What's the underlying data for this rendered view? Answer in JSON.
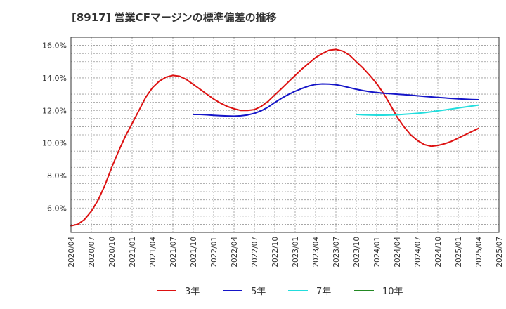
{
  "chart_data": {
    "type": "line",
    "title": "[8917]  営業CFマージンの標準偏差の推移",
    "xlabel": "",
    "ylabel": "",
    "ylim": [
      4.5,
      16.5
    ],
    "yticks": [
      6.0,
      8.0,
      10.0,
      12.0,
      14.0,
      16.0
    ],
    "ytick_labels": [
      "6.0%",
      "8.0%",
      "10.0%",
      "12.0%",
      "14.0%",
      "16.0%"
    ],
    "xtick_labels": [
      "2020/04",
      "2020/07",
      "2020/10",
      "2021/01",
      "2021/04",
      "2021/07",
      "2021/10",
      "2022/01",
      "2022/04",
      "2022/07",
      "2022/10",
      "2023/01",
      "2023/04",
      "2023/07",
      "2023/10",
      "2024/01",
      "2024/04",
      "2024/07",
      "2024/10",
      "2025/01",
      "2025/04",
      "2025/07"
    ],
    "grid": true,
    "legend_position": "bottom",
    "series": [
      {
        "name": "3年",
        "color": "#dd1111",
        "x": [
          "2020/04",
          "2020/05",
          "2020/06",
          "2020/07",
          "2020/08",
          "2020/09",
          "2020/10",
          "2020/11",
          "2020/12",
          "2021/01",
          "2021/02",
          "2021/03",
          "2021/04",
          "2021/05",
          "2021/06",
          "2021/07",
          "2021/08",
          "2021/09",
          "2021/10",
          "2021/11",
          "2021/12",
          "2022/01",
          "2022/02",
          "2022/03",
          "2022/04",
          "2022/05",
          "2022/06",
          "2022/07",
          "2022/08",
          "2022/09",
          "2022/10",
          "2022/11",
          "2022/12",
          "2023/01",
          "2023/02",
          "2023/03",
          "2023/04",
          "2023/05",
          "2023/06",
          "2023/07",
          "2023/08",
          "2023/09",
          "2023/10",
          "2023/11",
          "2023/12",
          "2024/01",
          "2024/02",
          "2024/03",
          "2024/04",
          "2024/05",
          "2024/06",
          "2024/07",
          "2024/08",
          "2024/09",
          "2024/10",
          "2024/11",
          "2024/12",
          "2025/01",
          "2025/02",
          "2025/03",
          "2025/04"
        ],
        "values": [
          4.9,
          5.0,
          5.3,
          5.8,
          6.5,
          7.4,
          8.5,
          9.5,
          10.4,
          11.2,
          12.0,
          12.8,
          13.4,
          13.8,
          14.05,
          14.15,
          14.1,
          13.9,
          13.6,
          13.3,
          13.0,
          12.7,
          12.45,
          12.25,
          12.1,
          12.0,
          12.0,
          12.05,
          12.25,
          12.55,
          12.95,
          13.35,
          13.75,
          14.15,
          14.55,
          14.9,
          15.25,
          15.5,
          15.7,
          15.75,
          15.65,
          15.4,
          15.0,
          14.6,
          14.15,
          13.65,
          13.05,
          12.35,
          11.6,
          11.0,
          10.5,
          10.15,
          9.9,
          9.8,
          9.85,
          9.95,
          10.1,
          10.3,
          10.5,
          10.7,
          10.9
        ]
      },
      {
        "name": "5年",
        "color": "#1515c8",
        "x": [
          "2021/10",
          "2021/11",
          "2021/12",
          "2022/01",
          "2022/02",
          "2022/03",
          "2022/04",
          "2022/05",
          "2022/06",
          "2022/07",
          "2022/08",
          "2022/09",
          "2022/10",
          "2022/11",
          "2022/12",
          "2023/01",
          "2023/02",
          "2023/03",
          "2023/04",
          "2023/05",
          "2023/06",
          "2023/07",
          "2023/08",
          "2023/09",
          "2023/10",
          "2023/11",
          "2023/12",
          "2024/01",
          "2024/02",
          "2024/03",
          "2024/04",
          "2024/05",
          "2024/06",
          "2024/07",
          "2024/08",
          "2024/09",
          "2024/10",
          "2024/11",
          "2024/12",
          "2025/01",
          "2025/02",
          "2025/03",
          "2025/04"
        ],
        "values": [
          11.75,
          11.75,
          11.73,
          11.7,
          11.68,
          11.66,
          11.65,
          11.67,
          11.72,
          11.82,
          11.98,
          12.2,
          12.48,
          12.75,
          12.98,
          13.18,
          13.35,
          13.5,
          13.6,
          13.63,
          13.62,
          13.58,
          13.5,
          13.4,
          13.3,
          13.22,
          13.15,
          13.1,
          13.06,
          13.03,
          13.0,
          12.97,
          12.94,
          12.9,
          12.86,
          12.83,
          12.8,
          12.77,
          12.74,
          12.71,
          12.69,
          12.67,
          12.66
        ]
      },
      {
        "name": "7年",
        "color": "#22dddd",
        "x": [
          "2023/10",
          "2023/11",
          "2023/12",
          "2024/01",
          "2024/02",
          "2024/03",
          "2024/04",
          "2024/05",
          "2024/06",
          "2024/07",
          "2024/08",
          "2024/09",
          "2024/10",
          "2024/11",
          "2024/12",
          "2025/01",
          "2025/02",
          "2025/03",
          "2025/04"
        ],
        "values": [
          11.75,
          11.73,
          11.72,
          11.71,
          11.71,
          11.72,
          11.73,
          11.76,
          11.79,
          11.82,
          11.86,
          11.91,
          11.97,
          12.03,
          12.09,
          12.15,
          12.21,
          12.27,
          12.33
        ]
      },
      {
        "name": "10年",
        "color": "#228822",
        "x": [],
        "values": []
      }
    ]
  }
}
